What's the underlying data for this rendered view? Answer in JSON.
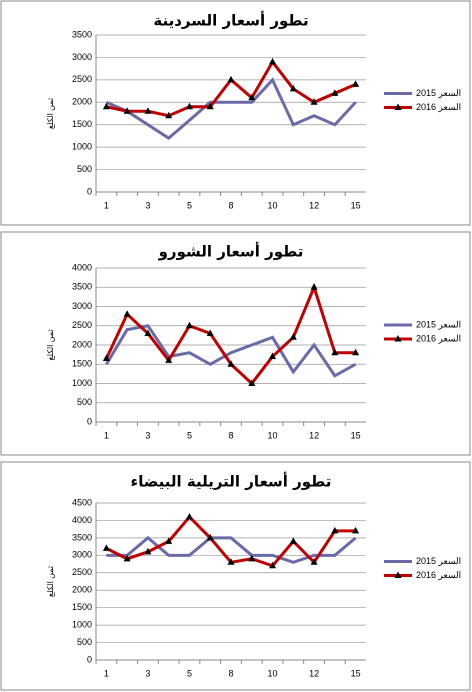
{
  "chart_data": [
    {
      "type": "line",
      "title": "تطور أسعار السردينة",
      "y_label": "ثمن الكلغ",
      "categories": [
        "1",
        null,
        "3",
        null,
        "5",
        null,
        "8",
        null,
        "10",
        null,
        "12",
        null,
        "15"
      ],
      "ylim": [
        0,
        3500
      ],
      "yticks": [
        0,
        500,
        1000,
        1500,
        2000,
        2500,
        3000,
        3500
      ],
      "grid": true,
      "series": [
        {
          "name": "السعر 2015",
          "color": "#6a6aa8",
          "values": [
            2000,
            1800,
            1500,
            1200,
            1600,
            2000,
            2000,
            2000,
            2500,
            1500,
            1700,
            1500,
            2000
          ]
        },
        {
          "name": "السعر 2016",
          "color": "#c00000",
          "marker": "triangle",
          "values": [
            1900,
            1800,
            1800,
            1700,
            1900,
            1900,
            2500,
            2100,
            2900,
            2300,
            2000,
            2200,
            2400
          ]
        }
      ]
    },
    {
      "type": "line",
      "title": "تطور أسعار الشورو",
      "y_label": "ثمن الكلغ",
      "categories": [
        "1",
        null,
        "3",
        null,
        "5",
        null,
        "8",
        null,
        "10",
        null,
        "12",
        null,
        "15"
      ],
      "ylim": [
        0,
        4000
      ],
      "yticks": [
        0,
        500,
        1000,
        1500,
        2000,
        2500,
        3000,
        3500,
        4000
      ],
      "grid": true,
      "series": [
        {
          "name": "السعر 2015",
          "color": "#6a6aa8",
          "values": [
            1500,
            2400,
            2500,
            1700,
            1800,
            1500,
            1800,
            2000,
            2200,
            1300,
            2000,
            1200,
            1500
          ]
        },
        {
          "name": "السعر 2016",
          "color": "#c00000",
          "marker": "triangle",
          "values": [
            1650,
            2800,
            2300,
            1600,
            2500,
            2300,
            1500,
            1000,
            1700,
            2200,
            3500,
            1800,
            1800
          ]
        }
      ]
    },
    {
      "type": "line",
      "title": "تطور أسعار التريلية البيضاء",
      "y_label": "ثمن الكلغ",
      "categories": [
        "1",
        null,
        "3",
        null,
        "5",
        null,
        "8",
        null,
        "10",
        null,
        "12",
        null,
        "15"
      ],
      "ylim": [
        0,
        4500
      ],
      "yticks": [
        0,
        500,
        1000,
        1500,
        2000,
        2500,
        3000,
        3500,
        4000,
        4500
      ],
      "grid": true,
      "series": [
        {
          "name": "السعر 2015",
          "color": "#6a6aa8",
          "values": [
            3000,
            3000,
            3500,
            3000,
            3000,
            3500,
            3500,
            3000,
            3000,
            2800,
            3000,
            3000,
            3500
          ]
        },
        {
          "name": "السعر 2016",
          "color": "#c00000",
          "marker": "triangle",
          "values": [
            3200,
            2900,
            3100,
            3400,
            4100,
            3500,
            2800,
            2900,
            2700,
            3400,
            2800,
            3700,
            3700
          ]
        }
      ]
    }
  ]
}
